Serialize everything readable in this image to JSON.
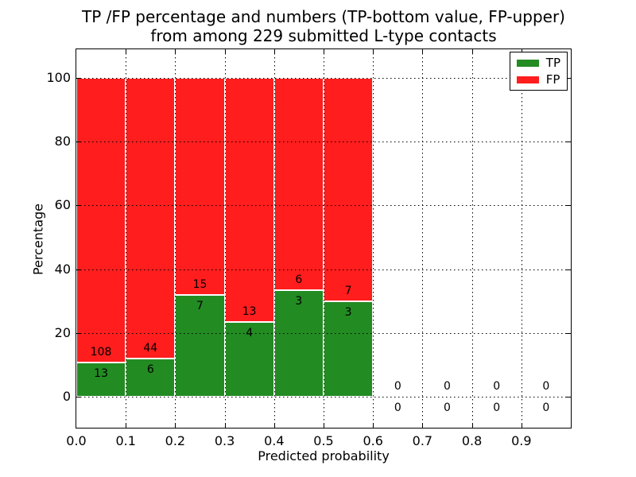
{
  "chart_data": {
    "type": "bar",
    "stacked": true,
    "title_lines": [
      "TP /FP percentage and numbers (TP-bottom value, FP-upper)",
      "from among 229 submitted L-type contacts"
    ],
    "xlabel": "Predicted probability",
    "ylabel": "Percentage",
    "total_contacts": 229,
    "bin_width": 0.1,
    "categories": [
      "0.0-0.1",
      "0.1-0.2",
      "0.2-0.3",
      "0.3-0.4",
      "0.4-0.5",
      "0.5-0.6",
      "0.6-0.7",
      "0.7-0.8",
      "0.8-0.9",
      "0.9-1.0"
    ],
    "series": [
      {
        "name": "TP",
        "color": "#228b22",
        "counts": [
          13,
          6,
          7,
          4,
          3,
          3,
          0,
          0,
          0,
          0
        ]
      },
      {
        "name": "FP",
        "color": "#ff1d1d",
        "counts": [
          108,
          44,
          15,
          13,
          6,
          7,
          0,
          0,
          0,
          0
        ]
      }
    ],
    "tp_percent_heights": [
      10.74,
      12.0,
      31.82,
      23.53,
      33.33,
      30.0,
      0,
      0,
      0,
      0
    ],
    "x_tick_values": [
      0.0,
      0.1,
      0.2,
      0.3,
      0.4,
      0.5,
      0.6,
      0.7,
      0.8,
      0.9
    ],
    "x_tick_labels": [
      "0.0",
      "0.1",
      "0.2",
      "0.3",
      "0.4",
      "0.5",
      "0.6",
      "0.7",
      "0.8",
      "0.9"
    ],
    "y_ticks": [
      0,
      20,
      40,
      60,
      80,
      100
    ],
    "xlim": [
      0.0,
      1.0
    ],
    "ylim_percent": [
      0,
      100
    ],
    "grid": "dotted",
    "legend": {
      "position": "upper right",
      "entries": [
        {
          "label": "TP",
          "color": "#228b22"
        },
        {
          "label": "FP",
          "color": "#ff1d1d"
        }
      ]
    }
  }
}
